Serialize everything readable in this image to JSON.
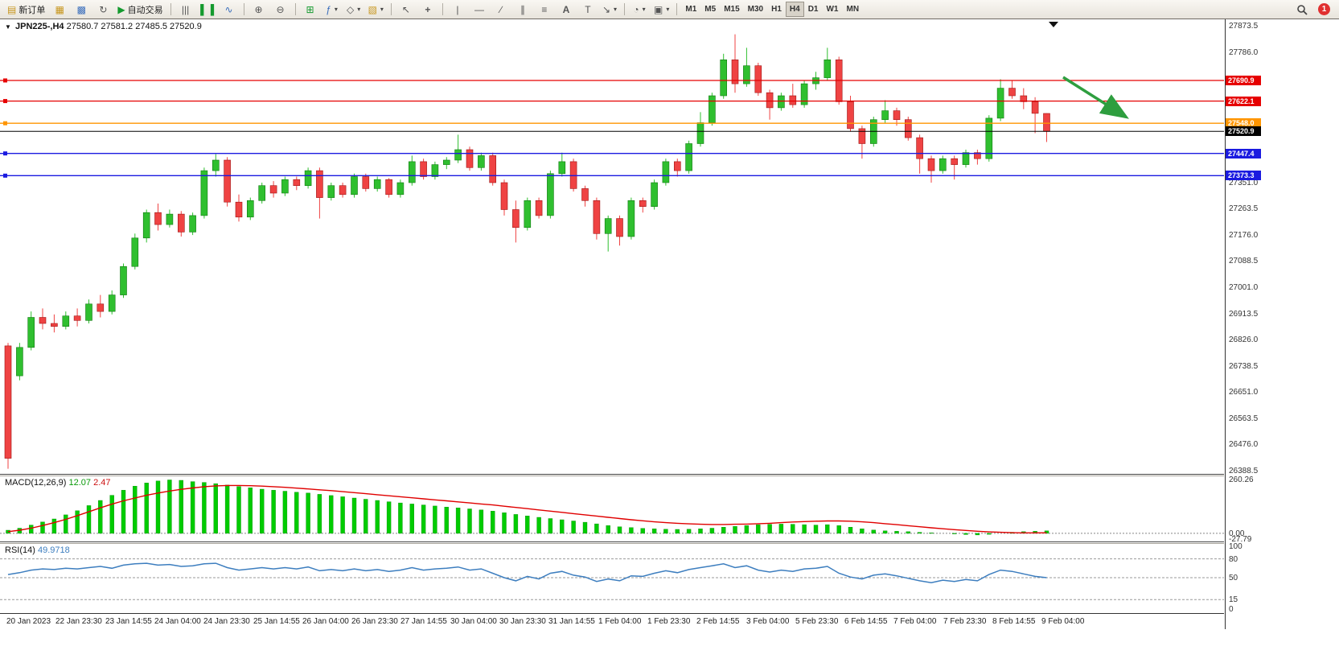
{
  "toolbar": {
    "new_order_label": "新订单",
    "auto_trading_label": "自动交易",
    "timeframes": [
      "M1",
      "M5",
      "M15",
      "M30",
      "H1",
      "H4",
      "D1",
      "W1",
      "MN"
    ],
    "active_timeframe": "H4",
    "notification_count": "1",
    "icons": {
      "new_order": "▤",
      "layers": "▦",
      "profiles": "▩",
      "refresh": "↻",
      "play": "▶",
      "bar_chart": "|||",
      "candles": "▌▐",
      "line_chart": "∿",
      "zoom_in": "⊕",
      "zoom_out": "⊖",
      "grid": "⊞",
      "indicators": "ƒ",
      "objects": "◇",
      "templates": "▧",
      "cursor": "↖",
      "crosshair": "+",
      "vline": "|",
      "hline": "—",
      "trendline": "∕",
      "channel": "∥",
      "fibonacci": "≡",
      "text": "A",
      "label": "T",
      "arrows": "↘",
      "clock": "◔",
      "camera": "▣",
      "caret": "▾",
      "collapse": "▼",
      "shift_marker": "▼"
    }
  },
  "chart": {
    "symbol": "JPN225-,H4",
    "ohlc_text": "27580.7 27581.2 27485.5 27520.9",
    "price_axis": [
      "27873.5",
      "27786.0",
      "27351.0",
      "27263.5",
      "27176.0",
      "27088.5",
      "27001.0",
      "26913.5",
      "26826.0",
      "26738.5",
      "26651.0",
      "26563.5",
      "26476.0",
      "26388.5"
    ],
    "levels": [
      {
        "label": "27690.9",
        "price": 27690.9,
        "color": "#e60000"
      },
      {
        "label": "27622.1",
        "price": 27622.1,
        "color": "#e60000"
      },
      {
        "label": "27548.0",
        "price": 27548.0,
        "color": "#ff9500"
      },
      {
        "label": "27520.9",
        "price": 27520.9,
        "color": "#000000",
        "bid": true
      },
      {
        "label": "27447.4",
        "price": 27447.4,
        "color": "#1a1ae0"
      },
      {
        "label": "27373.3",
        "price": 27373.3,
        "color": "#1a1ae0"
      }
    ]
  },
  "indicators": {
    "macd": {
      "title": "MACD(12,26,9)",
      "value_main": "12.07",
      "value_signal": "2.47",
      "axis": [
        {
          "label": "260.26",
          "value": 260.26
        },
        {
          "label": "0.00",
          "value": 0
        },
        {
          "label": "-27.79",
          "value": -27.79
        }
      ]
    },
    "rsi": {
      "title": "RSI(14)",
      "value": "49.9718",
      "axis": [
        {
          "label": "100",
          "value": 100
        },
        {
          "label": "80",
          "value": 80
        },
        {
          "label": "50",
          "value": 50
        },
        {
          "label": "15",
          "value": 15
        },
        {
          "label": "0",
          "value": 0
        }
      ]
    }
  },
  "time_axis": [
    "20 Jan 2023",
    "22 Jan 23:30",
    "23 Jan 14:55",
    "24 Jan 04:00",
    "24 Jan 23:30",
    "25 Jan 14:55",
    "26 Jan 04:00",
    "26 Jan 23:30",
    "27 Jan 14:55",
    "30 Jan 04:00",
    "30 Jan 23:30",
    "31 Jan 14:55",
    "1 Feb 04:00",
    "1 Feb 23:30",
    "2 Feb 14:55",
    "3 Feb 04:00",
    "5 Feb 23:30",
    "6 Feb 14:55",
    "7 Feb 04:00",
    "7 Feb 23:30",
    "8 Feb 14:55",
    "9 Feb 04:00"
  ],
  "colors": {
    "up": "#2fbf2f",
    "up_border": "#117a11",
    "down": "#ef4343",
    "down_border": "#9e1515",
    "macd_hist": "#00cc00",
    "macd_hist_border": "#0b8f0b",
    "macd_signal": "#e00000",
    "rsi_line": "#3d7ebf",
    "arrow": "#2e9e3f",
    "bid_line": "#000000"
  },
  "chart_data": [
    {
      "type": "candlestick",
      "title": "JPN225- H4",
      "ylim": [
        26388.5,
        27873.5
      ],
      "levels": [
        27690.9,
        27622.1,
        27548.0,
        27520.9,
        27447.4,
        27373.3
      ],
      "ohlc": [
        [
          26805,
          26815,
          26395,
          26430
        ],
        [
          26705,
          26815,
          26690,
          26800
        ],
        [
          26800,
          26920,
          26790,
          26900
        ],
        [
          26900,
          26930,
          26860,
          26880
        ],
        [
          26880,
          26910,
          26850,
          26870
        ],
        [
          26870,
          26920,
          26860,
          26905
        ],
        [
          26905,
          26930,
          26870,
          26890
        ],
        [
          26890,
          26960,
          26880,
          26945
        ],
        [
          26945,
          26975,
          26900,
          26920
        ],
        [
          26920,
          26990,
          26910,
          26975
        ],
        [
          26975,
          27080,
          26965,
          27070
        ],
        [
          27070,
          27180,
          27060,
          27165
        ],
        [
          27165,
          27260,
          27150,
          27250
        ],
        [
          27250,
          27280,
          27190,
          27210
        ],
        [
          27210,
          27260,
          27200,
          27245
        ],
        [
          27245,
          27255,
          27170,
          27185
        ],
        [
          27185,
          27250,
          27175,
          27240
        ],
        [
          27240,
          27400,
          27230,
          27390
        ],
        [
          27390,
          27445,
          27370,
          27425
        ],
        [
          27425,
          27435,
          27270,
          27285
        ],
        [
          27285,
          27310,
          27220,
          27235
        ],
        [
          27235,
          27300,
          27225,
          27290
        ],
        [
          27290,
          27350,
          27280,
          27340
        ],
        [
          27340,
          27355,
          27300,
          27315
        ],
        [
          27315,
          27370,
          27305,
          27360
        ],
        [
          27360,
          27370,
          27325,
          27340
        ],
        [
          27340,
          27400,
          27330,
          27390
        ],
        [
          27390,
          27400,
          27230,
          27300
        ],
        [
          27300,
          27350,
          27290,
          27340
        ],
        [
          27340,
          27350,
          27300,
          27310
        ],
        [
          27310,
          27380,
          27300,
          27370
        ],
        [
          27370,
          27380,
          27320,
          27330
        ],
        [
          27330,
          27370,
          27320,
          27360
        ],
        [
          27360,
          27365,
          27300,
          27310
        ],
        [
          27310,
          27360,
          27300,
          27350
        ],
        [
          27350,
          27440,
          27340,
          27420
        ],
        [
          27420,
          27430,
          27360,
          27370
        ],
        [
          27370,
          27420,
          27360,
          27410
        ],
        [
          27410,
          27435,
          27395,
          27425
        ],
        [
          27425,
          27510,
          27415,
          27460
        ],
        [
          27460,
          27470,
          27390,
          27400
        ],
        [
          27400,
          27450,
          27390,
          27440
        ],
        [
          27440,
          27450,
          27340,
          27350
        ],
        [
          27350,
          27360,
          27240,
          27260
        ],
        [
          27260,
          27290,
          27150,
          27200
        ],
        [
          27200,
          27300,
          27190,
          27290
        ],
        [
          27290,
          27300,
          27230,
          27240
        ],
        [
          27240,
          27390,
          27230,
          27380
        ],
        [
          27380,
          27450,
          27370,
          27420
        ],
        [
          27420,
          27430,
          27320,
          27330
        ],
        [
          27330,
          27340,
          27270,
          27290
        ],
        [
          27290,
          27300,
          27160,
          27180
        ],
        [
          27180,
          27240,
          27120,
          27230
        ],
        [
          27230,
          27240,
          27140,
          27170
        ],
        [
          27170,
          27300,
          27160,
          27290
        ],
        [
          27290,
          27300,
          27250,
          27270
        ],
        [
          27270,
          27360,
          27260,
          27350
        ],
        [
          27350,
          27430,
          27340,
          27420
        ],
        [
          27420,
          27430,
          27370,
          27390
        ],
        [
          27390,
          27490,
          27380,
          27480
        ],
        [
          27480,
          27585,
          27470,
          27550
        ],
        [
          27550,
          27650,
          27540,
          27640
        ],
        [
          27640,
          27780,
          27630,
          27760
        ],
        [
          27760,
          27845,
          27650,
          27680
        ],
        [
          27680,
          27800,
          27670,
          27740
        ],
        [
          27740,
          27750,
          27640,
          27650
        ],
        [
          27650,
          27660,
          27560,
          27600
        ],
        [
          27600,
          27650,
          27590,
          27640
        ],
        [
          27640,
          27680,
          27600,
          27610
        ],
        [
          27610,
          27690,
          27600,
          27680
        ],
        [
          27680,
          27720,
          27660,
          27700
        ],
        [
          27700,
          27800,
          27690,
          27760
        ],
        [
          27760,
          27770,
          27610,
          27620
        ],
        [
          27620,
          27640,
          27520,
          27530
        ],
        [
          27530,
          27540,
          27430,
          27480
        ],
        [
          27480,
          27570,
          27470,
          27560
        ],
        [
          27560,
          27625,
          27550,
          27590
        ],
        [
          27590,
          27600,
          27540,
          27560
        ],
        [
          27560,
          27570,
          27490,
          27500
        ],
        [
          27500,
          27510,
          27380,
          27430
        ],
        [
          27430,
          27440,
          27350,
          27390
        ],
        [
          27390,
          27440,
          27380,
          27430
        ],
        [
          27430,
          27440,
          27360,
          27410
        ],
        [
          27410,
          27460,
          27400,
          27450
        ],
        [
          27450,
          27460,
          27410,
          27430
        ],
        [
          27430,
          27575,
          27420,
          27565
        ],
        [
          27565,
          27695,
          27555,
          27665
        ],
        [
          27665,
          27690,
          27630,
          27640
        ],
        [
          27640,
          27665,
          27595,
          27620
        ],
        [
          27620,
          27635,
          27515,
          27581
        ],
        [
          27580.7,
          27581.2,
          27485.5,
          27520.9
        ]
      ]
    },
    {
      "type": "bar",
      "title": "MACD(12,26,9)",
      "ylim": [
        -27.79,
        260.26
      ],
      "readout": [
        12.07,
        2.47
      ],
      "values": [
        15,
        25,
        40,
        55,
        70,
        90,
        110,
        135,
        160,
        185,
        210,
        230,
        245,
        255,
        260,
        258,
        252,
        248,
        242,
        235,
        228,
        222,
        215,
        210,
        205,
        200,
        196,
        190,
        184,
        178,
        172,
        166,
        160,
        154,
        148,
        143,
        138,
        133,
        128,
        124,
        119,
        114,
        108,
        100,
        92,
        85,
        78,
        72,
        66,
        60,
        54,
        46,
        38,
        32,
        28,
        24,
        22,
        20,
        19,
        20,
        22,
        25,
        30,
        34,
        38,
        42,
        44,
        45,
        44,
        42,
        40,
        42,
        38,
        30,
        22,
        16,
        12,
        10,
        8,
        5,
        2,
        0,
        -3,
        -6,
        -8,
        -5,
        0,
        5,
        8,
        10,
        12
      ],
      "signal": [
        8,
        15,
        25,
        38,
        52,
        68,
        86,
        105,
        124,
        142,
        158,
        172,
        185,
        196,
        206,
        214,
        221,
        227,
        231,
        233,
        233,
        232,
        230,
        227,
        224,
        220,
        216,
        212,
        208,
        203,
        198,
        193,
        188,
        183,
        178,
        173,
        168,
        163,
        158,
        153,
        148,
        143,
        138,
        132,
        126,
        120,
        114,
        108,
        102,
        96,
        90,
        84,
        78,
        72,
        66,
        61,
        56,
        52,
        49,
        46,
        44,
        43,
        43,
        44,
        45,
        47,
        49,
        52,
        55,
        57,
        59,
        60,
        60,
        59,
        56,
        52,
        47,
        42,
        37,
        32,
        27,
        22,
        18,
        14,
        10,
        7,
        5,
        3,
        2,
        2,
        2.5
      ]
    },
    {
      "type": "line",
      "title": "RSI(14)",
      "ylim": [
        0,
        100
      ],
      "levels": [
        80,
        50,
        15
      ],
      "readout": 49.9718,
      "values": [
        55,
        58,
        62,
        64,
        63,
        65,
        64,
        66,
        68,
        65,
        70,
        72,
        73,
        70,
        71,
        68,
        69,
        72,
        73,
        66,
        62,
        64,
        66,
        64,
        66,
        64,
        67,
        61,
        63,
        61,
        64,
        61,
        63,
        60,
        62,
        66,
        62,
        64,
        65,
        67,
        62,
        64,
        57,
        50,
        45,
        52,
        48,
        57,
        60,
        54,
        51,
        44,
        48,
        45,
        53,
        52,
        57,
        61,
        58,
        63,
        66,
        69,
        72,
        66,
        69,
        62,
        59,
        62,
        60,
        64,
        65,
        68,
        57,
        51,
        48,
        54,
        56,
        53,
        49,
        45,
        42,
        46,
        44,
        47,
        45,
        55,
        62,
        60,
        56,
        52,
        50
      ]
    }
  ]
}
